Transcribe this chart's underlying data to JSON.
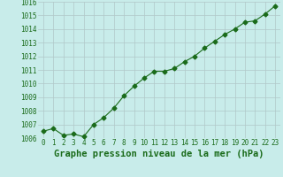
{
  "x": [
    0,
    1,
    2,
    3,
    4,
    5,
    6,
    7,
    8,
    9,
    10,
    11,
    12,
    13,
    14,
    15,
    16,
    17,
    18,
    19,
    20,
    21,
    22,
    23
  ],
  "y": [
    1006.5,
    1006.7,
    1006.2,
    1006.3,
    1006.1,
    1007.0,
    1007.5,
    1008.2,
    1009.1,
    1009.8,
    1010.4,
    1010.9,
    1010.9,
    1011.1,
    1011.6,
    1012.0,
    1012.6,
    1013.1,
    1013.6,
    1014.0,
    1014.5,
    1014.6,
    1015.1,
    1015.7
  ],
  "ylim": [
    1006,
    1016
  ],
  "yticks": [
    1006,
    1007,
    1008,
    1009,
    1010,
    1011,
    1012,
    1013,
    1014,
    1015,
    1016
  ],
  "xticks": [
    0,
    1,
    2,
    3,
    4,
    5,
    6,
    7,
    8,
    9,
    10,
    11,
    12,
    13,
    14,
    15,
    16,
    17,
    18,
    19,
    20,
    21,
    22,
    23
  ],
  "xlabel": "Graphe pression niveau de la mer (hPa)",
  "line_color": "#1a6b1a",
  "marker": "D",
  "marker_size": 2.5,
  "bg_color": "#c8ecea",
  "grid_color": "#b0c8c8",
  "tick_color": "#1a6b1a",
  "label_color": "#1a6b1a",
  "tick_fontsize": 5.5,
  "xlabel_fontsize": 7.5
}
